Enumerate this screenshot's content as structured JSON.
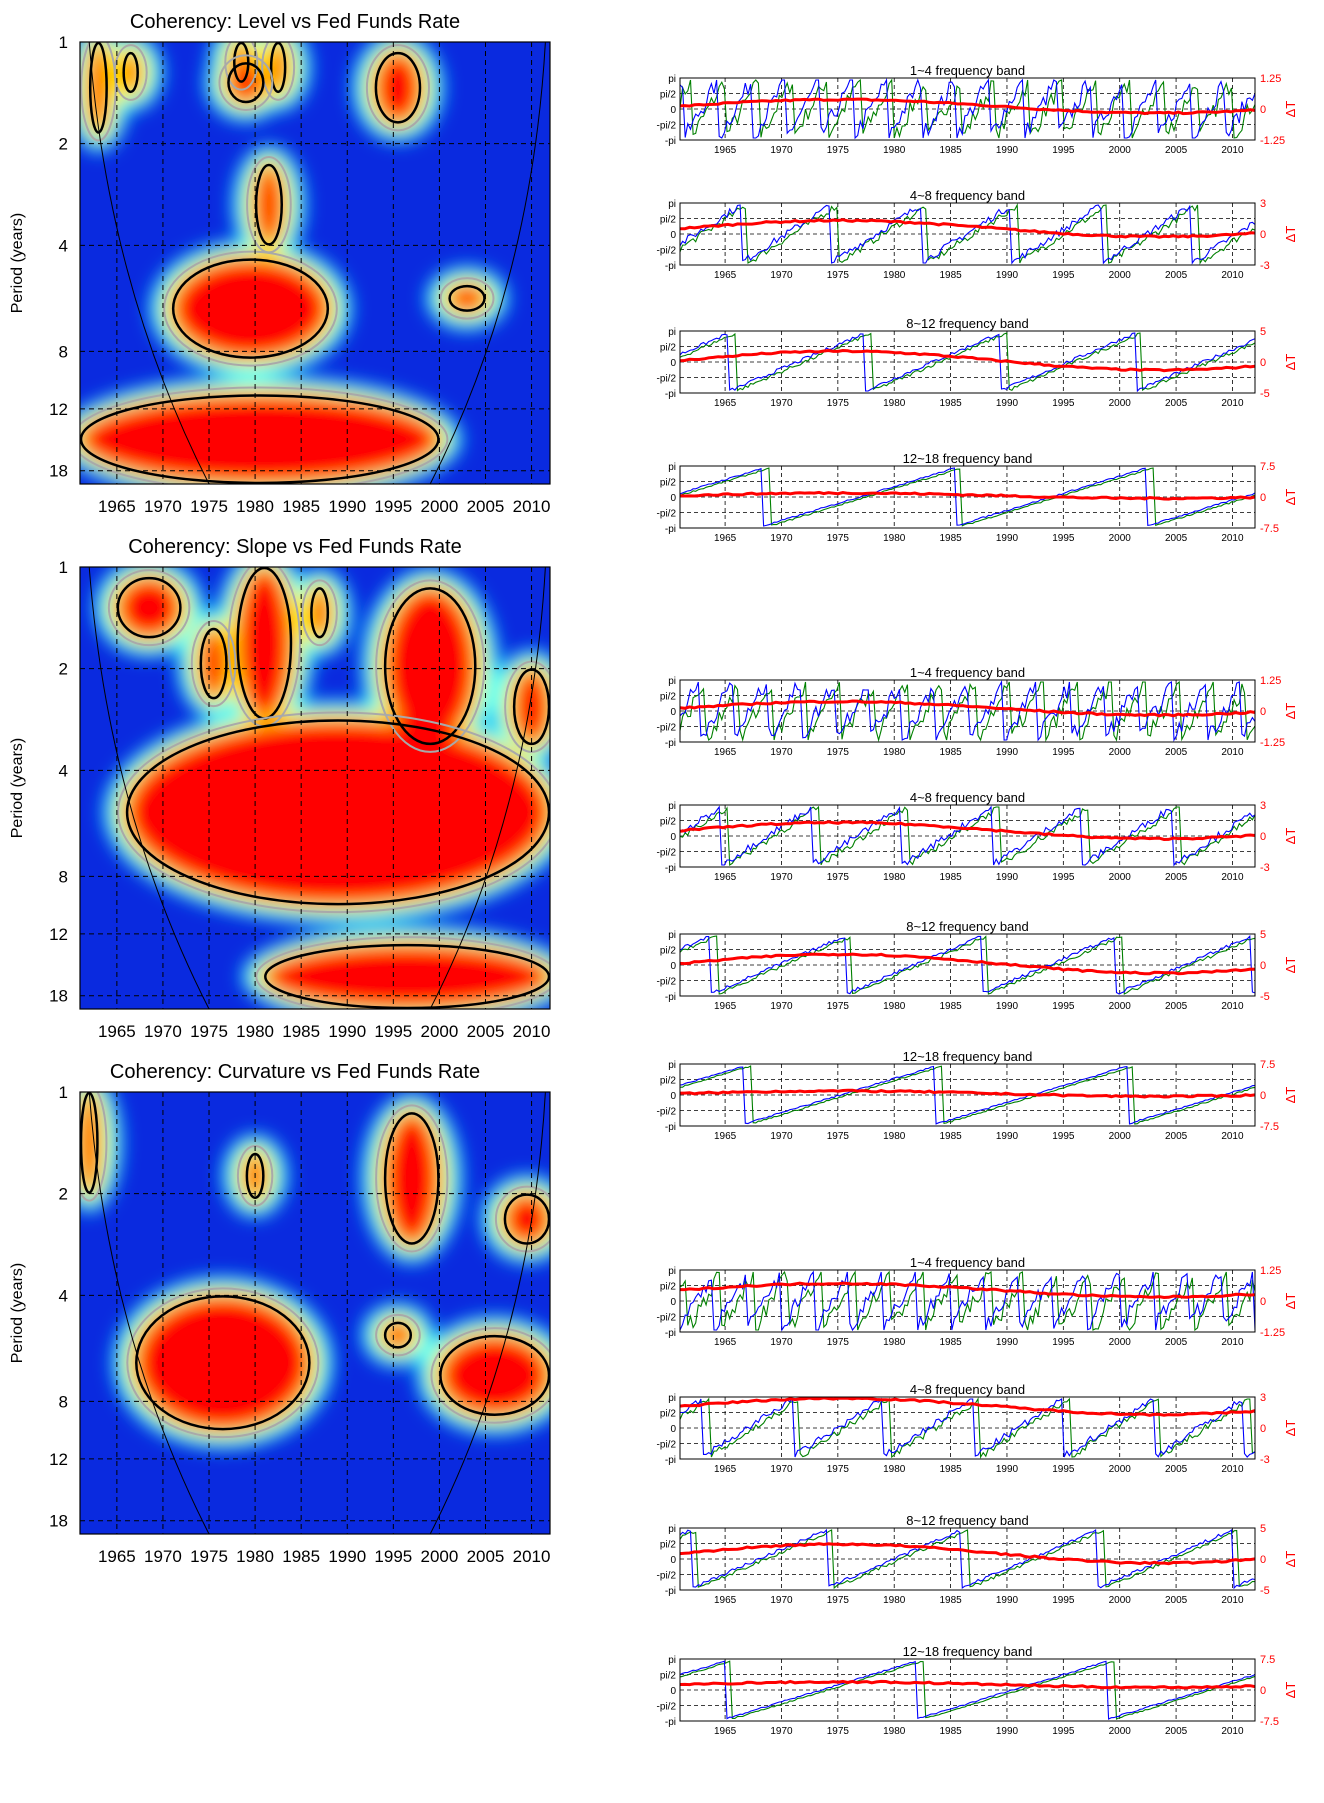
{
  "colors": {
    "coherency_scale": [
      "#00007f",
      "#0000ff",
      "#007fff",
      "#00ffff",
      "#7fff7f",
      "#ffff00",
      "#ff7f00",
      "#ff0000",
      "#7f0000"
    ],
    "contour_sig": "#000000",
    "contour_grey": "#a9a9a9",
    "phase_series_a": "#0000ff",
    "phase_series_b": "#008000",
    "delay_series": "#ff0000",
    "right_axis": "#ff0000"
  },
  "chart_data": [
    {
      "type": "heatmap",
      "title": "Coherency: Level vs Fed Funds Rate",
      "ylabel": "Period (years)",
      "x_ticks": [
        "1965",
        "1970",
        "1975",
        "1980",
        "1985",
        "1990",
        "1995",
        "2000",
        "2005",
        "2010"
      ],
      "y_ticks": [
        "1",
        "2",
        "4",
        "8",
        "12",
        "18"
      ],
      "x_range": [
        1961,
        2012
      ],
      "y_range_years": [
        1,
        19
      ],
      "grid": true,
      "cone_of_influence": true,
      "hot_regions": [
        {
          "x": [
            1962,
            1964
          ],
          "period": [
            1,
            1.9
          ]
        },
        {
          "x": [
            1966,
            1967
          ],
          "period": [
            1.1,
            1.5
          ]
        },
        {
          "x": [
            1978,
            1979
          ],
          "period": [
            1,
            1.4
          ]
        },
        {
          "x": [
            1982,
            1983
          ],
          "period": [
            1,
            1.5
          ]
        },
        {
          "x": [
            1993,
            1998
          ],
          "period": [
            1.1,
            1.8
          ]
        },
        {
          "x": [
            1977,
            1981
          ],
          "period": [
            1.2,
            1.6
          ]
        },
        {
          "x": [
            1980,
            1983
          ],
          "period": [
            2.4,
            4
          ]
        },
        {
          "x": [
            1971,
            1988
          ],
          "period": [
            4.5,
            8.5
          ]
        },
        {
          "x": [
            2001,
            2005
          ],
          "period": [
            5.5,
            6.5
          ]
        },
        {
          "x": [
            1961,
            2000
          ],
          "period": [
            11,
            19
          ]
        }
      ]
    },
    {
      "type": "heatmap",
      "title": "Coherency: Slope vs Fed Funds Rate",
      "ylabel": "Period (years)",
      "x_ticks": [
        "1965",
        "1970",
        "1975",
        "1980",
        "1985",
        "1990",
        "1995",
        "2000",
        "2005",
        "2010"
      ],
      "y_ticks": [
        "1",
        "2",
        "4",
        "8",
        "12",
        "18"
      ],
      "x_range": [
        1961,
        2012
      ],
      "y_range_years": [
        1,
        19
      ],
      "grid": true,
      "cone_of_influence": true,
      "hot_regions": [
        {
          "x": [
            1965,
            1972
          ],
          "period": [
            1.1,
            1.7
          ]
        },
        {
          "x": [
            1974,
            1977
          ],
          "period": [
            1.6,
            2.6
          ]
        },
        {
          "x": [
            1978,
            1984
          ],
          "period": [
            1,
            3
          ]
        },
        {
          "x": [
            1986,
            1988
          ],
          "period": [
            1.2,
            1.7
          ]
        },
        {
          "x": [
            1994,
            2004
          ],
          "period": [
            1.2,
            3.5
          ]
        },
        {
          "x": [
            2008,
            2012
          ],
          "period": [
            2,
            3.5
          ]
        },
        {
          "x": [
            1966,
            2012
          ],
          "period": [
            3,
            10
          ]
        },
        {
          "x": [
            1981,
            2012
          ],
          "period": [
            13,
            19
          ]
        }
      ]
    },
    {
      "type": "heatmap",
      "title": "Coherency: Curvature vs Fed Funds Rate",
      "ylabel": "Period (years)",
      "x_ticks": [
        "1965",
        "1970",
        "1975",
        "1980",
        "1985",
        "1990",
        "1995",
        "2000",
        "2005",
        "2010"
      ],
      "y_ticks": [
        "1",
        "2",
        "4",
        "8",
        "12",
        "18"
      ],
      "x_range": [
        1961,
        2012
      ],
      "y_range_years": [
        1,
        19
      ],
      "grid": true,
      "cone_of_influence": true,
      "hot_regions": [
        {
          "x": [
            1961,
            1963
          ],
          "period": [
            1,
            2
          ]
        },
        {
          "x": [
            1979,
            1981
          ],
          "period": [
            1.6,
            2.1
          ]
        },
        {
          "x": [
            1994,
            2000
          ],
          "period": [
            1.2,
            3
          ]
        },
        {
          "x": [
            2007,
            2012
          ],
          "period": [
            2,
            3
          ]
        },
        {
          "x": [
            1967,
            1986
          ],
          "period": [
            4,
            10
          ]
        },
        {
          "x": [
            1994,
            1997
          ],
          "period": [
            5,
            6
          ]
        },
        {
          "x": [
            2000,
            2012
          ],
          "period": [
            5.5,
            9
          ]
        }
      ]
    }
  ],
  "phase_panels": [
    {
      "bands": [
        {
          "title": "1~4 frequency band",
          "right_ticks": [
            "1.25",
            "0",
            "-1.25"
          ]
        },
        {
          "title": "4~8 frequency band",
          "right_ticks": [
            "3",
            "0",
            "-3"
          ]
        },
        {
          "title": "8~12 frequency band",
          "right_ticks": [
            "5",
            "0",
            "-5"
          ]
        },
        {
          "title": "12~18 frequency band",
          "right_ticks": [
            "7.5",
            "0",
            "-7.5"
          ]
        }
      ]
    },
    {
      "bands": [
        {
          "title": "1~4 frequency band",
          "right_ticks": [
            "1.25",
            "0",
            "-1.25"
          ]
        },
        {
          "title": "4~8 frequency band",
          "right_ticks": [
            "3",
            "0",
            "-3"
          ]
        },
        {
          "title": "8~12 frequency band",
          "right_ticks": [
            "5",
            "0",
            "-5"
          ]
        },
        {
          "title": "12~18 frequency band",
          "right_ticks": [
            "7.5",
            "0",
            "-7.5"
          ]
        }
      ]
    },
    {
      "bands": [
        {
          "title": "1~4 frequency band",
          "right_ticks": [
            "1.25",
            "0",
            "-1.25"
          ]
        },
        {
          "title": "4~8 frequency band",
          "right_ticks": [
            "3",
            "0",
            "-3"
          ]
        },
        {
          "title": "8~12 frequency band",
          "right_ticks": [
            "5",
            "0",
            "-5"
          ]
        },
        {
          "title": "12~18 frequency band",
          "right_ticks": [
            "7.5",
            "0",
            "-7.5"
          ]
        }
      ]
    }
  ],
  "phase_axis": {
    "left_ticks": [
      "pi",
      "pi/2",
      "0",
      "-pi/2",
      "-pi"
    ],
    "x_ticks": [
      "1965",
      "1970",
      "1975",
      "1980",
      "1985",
      "1990",
      "1995",
      "2000",
      "2005",
      "2010"
    ],
    "right_label": "ΔT"
  }
}
